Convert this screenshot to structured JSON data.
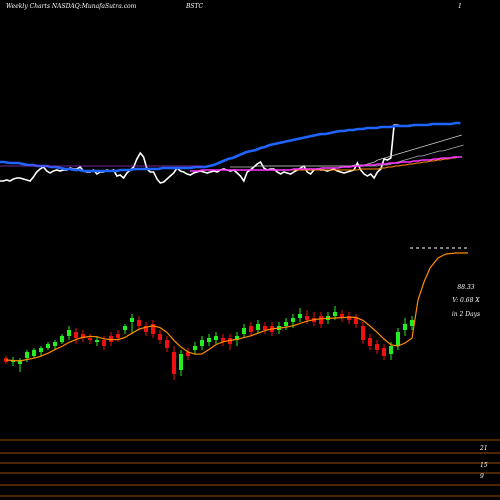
{
  "header": {
    "title": "Weekly Charts NASDAQ:MunafaSutra.com",
    "symbol": "BSTC",
    "page": "1"
  },
  "colors": {
    "background": "#000000",
    "up": "#22ee22",
    "down": "#ee1111",
    "sma_blue": "#1e64ff",
    "sma_orange": "#ff8c00",
    "sma_magenta": "#ff33ff",
    "sma_grey": "#bbbbbb",
    "sma_purple": "#9933cc",
    "price_line": "#ffffff",
    "grid": "#cc6600"
  },
  "chart_data": [
    {
      "type": "line",
      "panel": "moving averages",
      "series": [
        {
          "color": "#ffffff",
          "values": [
            181,
            181,
            180,
            181,
            179,
            178,
            178,
            179,
            180,
            181,
            177,
            172,
            169,
            167,
            171,
            173,
            171,
            170,
            171,
            170,
            170,
            168,
            169,
            169,
            167,
            171,
            172,
            172,
            170,
            174,
            172,
            172,
            170,
            171,
            170,
            176,
            175,
            178,
            173,
            170,
            167,
            159,
            153,
            157,
            169,
            172,
            172,
            179,
            183,
            182,
            179,
            176,
            173,
            168,
            171,
            172,
            174,
            175,
            173,
            172,
            171,
            172,
            173,
            172,
            171,
            172,
            170,
            169,
            170,
            171,
            170,
            173,
            176,
            181,
            172,
            170,
            167,
            164,
            162,
            168,
            170,
            169,
            169,
            172,
            174,
            172,
            173,
            174,
            172,
            170,
            168,
            166,
            172,
            174,
            170,
            169,
            170,
            170,
            171,
            170,
            169,
            171,
            172,
            173,
            172,
            171,
            170,
            163,
            170,
            174,
            176,
            174,
            178,
            172,
            169,
            159,
            160,
            158,
            125,
            125,
            126,
            126,
            126,
            125
          ]
        },
        {
          "color": "#1e64ff",
          "values": [
            162,
            162,
            163,
            163,
            163,
            164,
            165,
            165,
            166,
            166,
            166,
            167,
            167,
            168,
            169,
            169,
            170,
            170,
            171,
            171,
            171,
            171,
            171,
            171,
            171,
            171,
            170,
            170,
            170,
            169,
            169,
            169,
            169,
            169,
            169,
            168,
            168,
            168,
            168,
            168,
            168,
            168,
            167,
            167,
            167,
            166,
            165,
            163,
            161,
            159,
            158,
            156,
            154,
            152,
            151,
            150,
            148,
            147,
            145,
            144,
            143,
            142,
            141,
            140,
            139,
            138,
            137,
            136,
            135,
            134,
            134,
            133,
            132,
            131,
            131,
            130,
            130,
            129,
            129,
            128,
            128,
            128,
            127,
            127,
            127,
            126,
            126,
            126,
            126,
            125,
            125,
            125,
            125,
            124,
            124,
            124,
            124,
            124,
            123,
            123
          ]
        },
        {
          "color": "#cccccc",
          "values": [
            167,
            167,
            167,
            167,
            167,
            167,
            167,
            167,
            166,
            166,
            166,
            166,
            166,
            166,
            166,
            166,
            166,
            166,
            166,
            166,
            166,
            166,
            166,
            166,
            166,
            166,
            166,
            166,
            166,
            166,
            166,
            166,
            166,
            166,
            166,
            166,
            166,
            165,
            165,
            165,
            165,
            164,
            163,
            162,
            160,
            159,
            158,
            157,
            156,
            155,
            154,
            153,
            152,
            151,
            150,
            149,
            148,
            147,
            146,
            145,
            144,
            143,
            142,
            141,
            140,
            139,
            138,
            137,
            136,
            135
          ]
        },
        {
          "color": "#aaaaaa",
          "values": [
            166,
            166,
            166,
            166,
            166,
            166,
            166,
            166,
            166,
            166,
            166,
            166,
            166,
            166,
            166,
            166,
            166,
            166,
            166,
            166,
            166,
            166,
            166,
            166,
            166,
            166,
            166,
            166,
            166,
            166,
            166,
            166,
            166,
            166,
            166,
            165,
            165,
            165,
            164,
            163,
            162,
            161,
            160,
            159,
            158,
            157,
            156,
            156,
            155,
            154,
            153,
            152,
            151,
            151,
            150,
            149,
            148,
            147,
            146,
            145
          ]
        },
        {
          "color": "#ff8c00",
          "values": [
            170,
            170,
            170,
            170,
            170,
            170,
            170,
            170,
            170,
            170,
            170,
            170,
            170,
            170,
            170,
            170,
            170,
            170,
            170,
            170,
            170,
            170,
            170,
            169,
            169,
            169,
            169,
            169,
            169,
            168,
            168,
            167,
            167,
            166,
            166,
            165,
            165,
            164,
            164,
            163,
            163,
            162,
            162,
            161,
            161,
            160,
            160,
            159,
            159,
            158,
            158,
            157,
            157
          ]
        },
        {
          "color": "#ff33ff",
          "values": [
            171,
            171,
            171,
            170,
            170,
            170,
            170,
            170,
            170,
            170,
            170,
            170,
            170,
            170,
            170,
            170,
            170,
            170,
            170,
            170,
            170,
            170,
            170,
            170,
            170,
            170,
            169,
            169,
            169,
            169,
            169,
            169,
            169,
            168,
            168,
            168,
            168,
            168,
            167,
            167,
            167,
            166,
            166,
            166,
            165,
            165,
            165,
            164,
            164,
            164,
            163,
            163,
            163,
            162,
            162,
            162,
            161,
            161,
            160,
            160,
            160,
            159,
            159,
            158,
            158,
            158,
            157,
            157,
            157
          ]
        },
        {
          "color": "#9933cc",
          "values": [
            166,
            166,
            166,
            166,
            166,
            166,
            166,
            166,
            166,
            166,
            166,
            166,
            166,
            166,
            166,
            166,
            166,
            166,
            166,
            166,
            166,
            166,
            166,
            166,
            166,
            166,
            166,
            166,
            166,
            166,
            166,
            166,
            166,
            166,
            166,
            166,
            166,
            166,
            166,
            166,
            166,
            166,
            166,
            166,
            166,
            166
          ]
        }
      ]
    },
    {
      "type": "candlestick",
      "panel": "price",
      "labels": [
        "88.33",
        "V: 0.68  X",
        "in 2 Days"
      ],
      "up_color": "#22ee22",
      "down_color": "#ee1111"
    },
    {
      "type": "line",
      "panel": "levels",
      "y_labels": [
        "21",
        "15",
        "9"
      ]
    }
  ]
}
